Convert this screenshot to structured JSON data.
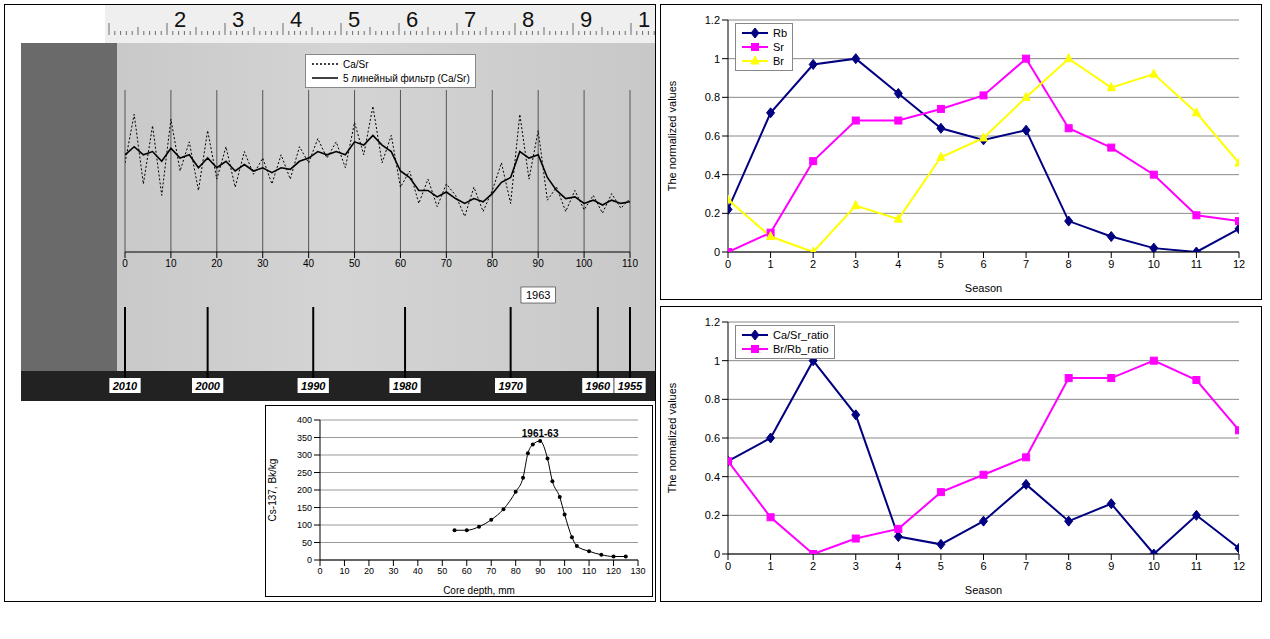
{
  "chart_data": [
    {
      "type": "line",
      "legend": "top",
      "grid": true,
      "tick_labels": "x",
      "x": [
        0,
        2,
        4,
        6,
        8,
        10,
        12,
        14,
        16,
        18,
        20,
        22,
        24,
        26,
        28,
        30,
        32,
        34,
        36,
        38,
        40,
        42,
        44,
        46,
        48,
        50,
        52,
        54,
        56,
        58,
        60,
        62,
        64,
        66,
        68,
        70,
        72,
        74,
        76,
        78,
        80,
        82,
        84,
        86,
        88,
        90,
        92,
        94,
        96,
        98,
        100,
        102,
        104,
        106,
        108,
        110
      ],
      "xlim": [
        0,
        110
      ],
      "xticks": [
        0,
        10,
        20,
        30,
        40,
        50,
        60,
        70,
        80,
        90,
        100,
        110
      ],
      "ylim": [
        0,
        10
      ],
      "series": [
        {
          "name": "Ca/Sr",
          "color": "#000000",
          "line_style": "dotted",
          "values": [
            5.5,
            8.5,
            4.2,
            7.8,
            3.5,
            8.2,
            5.0,
            6.8,
            3.8,
            7.5,
            4.5,
            6.5,
            4.0,
            6.2,
            4.8,
            5.8,
            4.2,
            6.0,
            4.5,
            6.5,
            5.5,
            7.0,
            5.8,
            6.8,
            5.2,
            8.0,
            6.0,
            9.0,
            5.5,
            7.2,
            4.0,
            5.0,
            3.0,
            4.5,
            2.8,
            4.2,
            3.5,
            2.2,
            4.0,
            2.5,
            3.8,
            5.5,
            3.0,
            8.5,
            4.5,
            7.5,
            3.2,
            4.0,
            2.5,
            3.8,
            2.6,
            3.5,
            2.4,
            3.6,
            2.7,
            3.3
          ]
        },
        {
          "name": "5 линейный фильтр (Ca/Sr)",
          "color": "#000000",
          "line_style": "solid",
          "values": [
            6.0,
            6.5,
            6.0,
            6.2,
            5.6,
            6.4,
            5.8,
            6.0,
            5.2,
            5.8,
            5.2,
            5.6,
            5.0,
            5.4,
            5.0,
            5.2,
            4.9,
            5.2,
            5.1,
            5.6,
            5.8,
            6.2,
            6.0,
            6.2,
            6.0,
            6.8,
            6.6,
            7.2,
            6.6,
            6.2,
            5.0,
            4.6,
            3.8,
            3.8,
            3.4,
            3.7,
            3.3,
            3.0,
            3.3,
            3.1,
            3.6,
            4.3,
            4.6,
            6.2,
            5.8,
            6.0,
            4.6,
            3.8,
            3.3,
            3.4,
            3.0,
            3.2,
            2.9,
            3.2,
            3.0,
            3.1
          ]
        }
      ],
      "annotations": [
        {
          "x": 90,
          "text": "1963"
        }
      ]
    },
    {
      "type": "line",
      "x_label": "Core depth, mm",
      "y_label": "Cs-137, Bk/kg",
      "grid": true,
      "marker": "circle",
      "color": "#000000",
      "x": [
        55,
        60,
        65,
        70,
        75,
        80,
        83,
        85,
        87,
        90,
        93,
        95,
        98,
        100,
        103,
        105,
        110,
        115,
        120,
        125
      ],
      "values": [
        85,
        85,
        95,
        115,
        145,
        195,
        235,
        305,
        330,
        340,
        290,
        225,
        180,
        130,
        65,
        40,
        25,
        15,
        10,
        10
      ],
      "xlim": [
        0,
        130
      ],
      "xticks": [
        0,
        10,
        20,
        30,
        40,
        50,
        60,
        70,
        80,
        90,
        100,
        110,
        120,
        130
      ],
      "ylim": [
        0,
        400
      ],
      "yticks": [
        0,
        50,
        100,
        150,
        200,
        250,
        300,
        350,
        400
      ],
      "annotations": [
        {
          "x": 90,
          "y": 340,
          "text": "1961-63"
        }
      ]
    },
    {
      "type": "line",
      "x_label": "Season",
      "y_label": "The normalized values",
      "grid": true,
      "legend": "top-left",
      "x": [
        0,
        1,
        2,
        3,
        4,
        5,
        6,
        7,
        8,
        9,
        10,
        11,
        12
      ],
      "xlim": [
        0,
        12
      ],
      "xticks": [
        0,
        1,
        2,
        3,
        4,
        5,
        6,
        7,
        8,
        9,
        10,
        11,
        12
      ],
      "ylim": [
        0,
        1.2
      ],
      "yticks": [
        0,
        0.2,
        0.4,
        0.6,
        0.8,
        1,
        1.2
      ],
      "series": [
        {
          "name": "Rb",
          "color": "#000080",
          "marker": "diamond",
          "values": [
            0.22,
            0.72,
            0.97,
            1.0,
            0.82,
            0.64,
            0.58,
            0.63,
            0.16,
            0.08,
            0.02,
            0,
            0.12
          ]
        },
        {
          "name": "Sr",
          "color": "#ff00ff",
          "marker": "square",
          "values": [
            0,
            0.1,
            0.47,
            0.68,
            0.68,
            0.74,
            0.81,
            1.0,
            0.64,
            0.54,
            0.4,
            0.19,
            0.16
          ]
        },
        {
          "name": "Br",
          "color": "#ffff00",
          "marker": "triangle",
          "values": [
            0.27,
            0.08,
            0,
            0.24,
            0.17,
            0.49,
            0.59,
            0.8,
            1.0,
            0.85,
            0.92,
            0.72,
            0.46
          ]
        }
      ]
    },
    {
      "type": "line",
      "x_label": "Season",
      "y_label": "The normalized values",
      "grid": true,
      "legend": "top-left",
      "x": [
        0,
        1,
        2,
        3,
        4,
        5,
        6,
        7,
        8,
        9,
        10,
        11,
        12
      ],
      "xlim": [
        0,
        12
      ],
      "xticks": [
        0,
        1,
        2,
        3,
        4,
        5,
        6,
        7,
        8,
        9,
        10,
        11,
        12
      ],
      "ylim": [
        0,
        1.2
      ],
      "yticks": [
        0,
        0.2,
        0.4,
        0.6,
        0.8,
        1,
        1.2
      ],
      "series": [
        {
          "name": "Ca/Sr_ratio",
          "color": "#000080",
          "marker": "diamond",
          "values": [
            0.48,
            0.6,
            1.0,
            0.72,
            0.09,
            0.05,
            0.17,
            0.36,
            0.17,
            0.26,
            0,
            0.2,
            0.03
          ]
        },
        {
          "name": "Br/Rb_ratio",
          "color": "#ff00ff",
          "marker": "square",
          "values": [
            0.48,
            0.19,
            0,
            0.08,
            0.13,
            0.32,
            0.41,
            0.5,
            0.91,
            0.91,
            1.0,
            0.9,
            0.64
          ]
        }
      ]
    }
  ],
  "core_photo": {
    "ruler_labels": [
      "2",
      "3",
      "4",
      "5",
      "6",
      "7",
      "8",
      "9",
      "1"
    ],
    "year_marks": [
      {
        "depth": 0,
        "label": "2010"
      },
      {
        "depth": 18,
        "label": "2000"
      },
      {
        "depth": 41,
        "label": "1990"
      },
      {
        "depth": 61,
        "label": "1980"
      },
      {
        "depth": 84,
        "label": "1970"
      },
      {
        "depth": 103,
        "label": "1960"
      },
      {
        "depth": 110,
        "label": "1955"
      }
    ]
  }
}
